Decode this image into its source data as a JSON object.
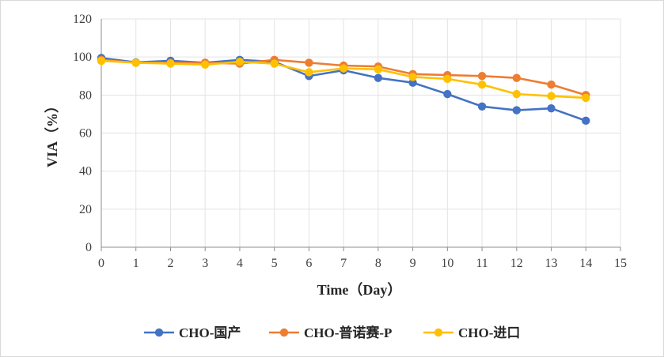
{
  "chart_data": {
    "type": "line",
    "xlabel": "Time（Day）",
    "ylabel": "VIA（%）",
    "xlim": [
      0,
      15
    ],
    "ylim": [
      0,
      120
    ],
    "x": [
      0,
      1,
      2,
      3,
      4,
      5,
      6,
      7,
      8,
      9,
      10,
      11,
      12,
      13,
      14
    ],
    "x_ticks": [
      "0",
      "1",
      "2",
      "3",
      "4",
      "5",
      "6",
      "7",
      "8",
      "9",
      "10",
      "11",
      "12",
      "13",
      "14",
      "15"
    ],
    "y_ticks": [
      "0",
      "20",
      "40",
      "60",
      "80",
      "100",
      "120"
    ],
    "grid": true,
    "legend_position": "bottom",
    "series": [
      {
        "name": "CHO-国产",
        "color": "#4472C4",
        "values": [
          99.5,
          97.2,
          98.0,
          97.0,
          98.5,
          97.5,
          90.0,
          93.0,
          89.0,
          86.5,
          80.5,
          74.0,
          72.0,
          73.0,
          66.5
        ]
      },
      {
        "name": "CHO-普诺赛-P",
        "color": "#ED7D31",
        "values": [
          98.5,
          97.0,
          97.0,
          97.0,
          96.5,
          98.5,
          97.0,
          95.5,
          95.0,
          91.0,
          90.5,
          90.0,
          89.0,
          85.5,
          80.0
        ]
      },
      {
        "name": "CHO-进口",
        "color": "#FFC000",
        "values": [
          98.0,
          97.0,
          96.5,
          96.0,
          97.5,
          96.5,
          92.0,
          94.0,
          93.5,
          89.5,
          88.5,
          85.5,
          80.5,
          79.5,
          78.5
        ]
      }
    ]
  }
}
